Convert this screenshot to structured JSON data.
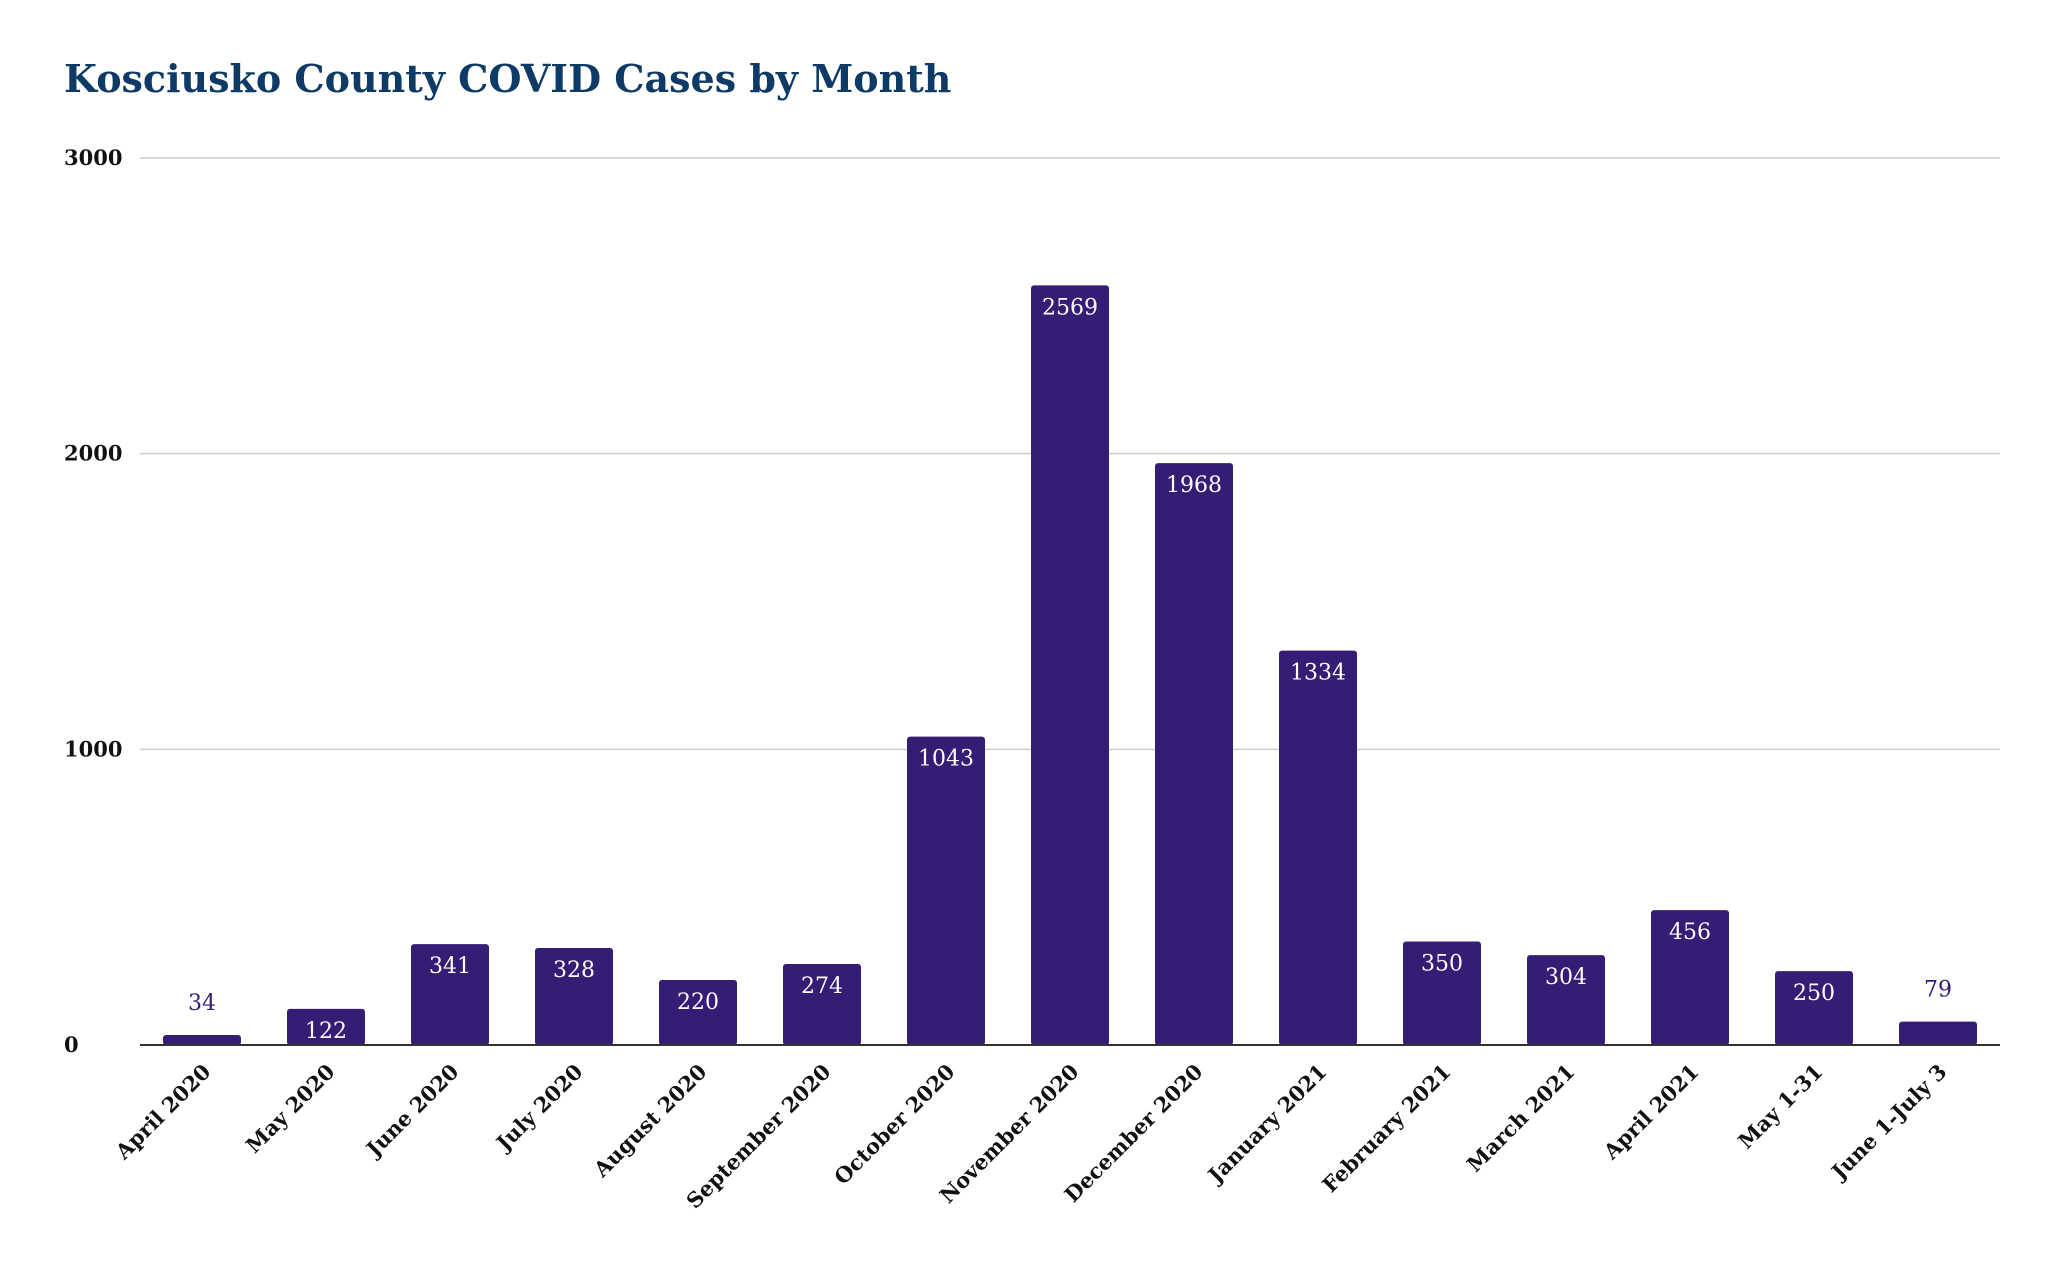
{
  "chart_data": {
    "type": "bar",
    "title": "Kosciusko County COVID Cases by Month",
    "xlabel": "",
    "ylabel": "",
    "categories": [
      "April 2020",
      "May 2020",
      "June 2020",
      "July 2020",
      "August 2020",
      "September 2020",
      "October 2020",
      "November 2020",
      "December 2020",
      "January 2021",
      "February 2021",
      "March 2021",
      "April 2021",
      "May 1-31",
      "June 1-July 3"
    ],
    "values": [
      34,
      122,
      341,
      328,
      220,
      274,
      1043,
      2569,
      1968,
      1334,
      350,
      304,
      456,
      250,
      79
    ],
    "ylim": [
      0,
      3000
    ],
    "yticks": [
      0,
      1000,
      2000,
      3000
    ],
    "grid": true,
    "legend": "none",
    "colors": {
      "bar": "#351c75",
      "title": "#0d3b66",
      "label_inside": "#ffffff",
      "label_outside": "#351c75",
      "grid": "#cccccc",
      "axis": "#333333"
    }
  }
}
